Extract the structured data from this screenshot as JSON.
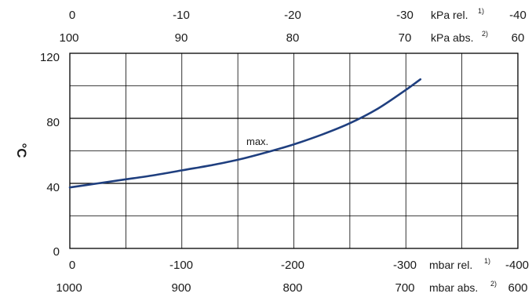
{
  "chart_data": {
    "type": "line",
    "ylabel": "°C",
    "ylim": [
      0,
      120
    ],
    "yticks": [
      "120",
      "80",
      "40",
      "0"
    ],
    "xlim": [
      0,
      -400
    ],
    "grid": true,
    "axes": {
      "top_rel": {
        "ticks": [
          "0",
          "-10",
          "-20",
          "-30",
          "-40"
        ],
        "unit": "kPa rel.",
        "note": "1)"
      },
      "top_abs": {
        "ticks": [
          "100",
          "90",
          "80",
          "70",
          "60"
        ],
        "unit": "kPa abs.",
        "note": "2)"
      },
      "bottom_rel": {
        "ticks": [
          "0",
          "-100",
          "-200",
          "-300",
          "-400"
        ],
        "unit": "mbar rel.",
        "note": "1)"
      },
      "bottom_abs": {
        "ticks": [
          "1000",
          "900",
          "800",
          "700",
          "600"
        ],
        "unit": "mbar abs.",
        "note": "2)"
      }
    },
    "annotation": "max.",
    "series": [
      {
        "color": "#1f3f7f",
        "x": [
          0,
          -25,
          -50,
          -75,
          -100,
          -125,
          -150,
          -175,
          -200,
          -225,
          -250,
          -275,
          -300,
          -313
        ],
        "y": [
          37.5,
          40.0,
          42.5,
          45.0,
          48.0,
          51.0,
          54.5,
          59.0,
          64.0,
          70.0,
          77.0,
          86.0,
          97.5,
          104.0
        ]
      }
    ]
  }
}
